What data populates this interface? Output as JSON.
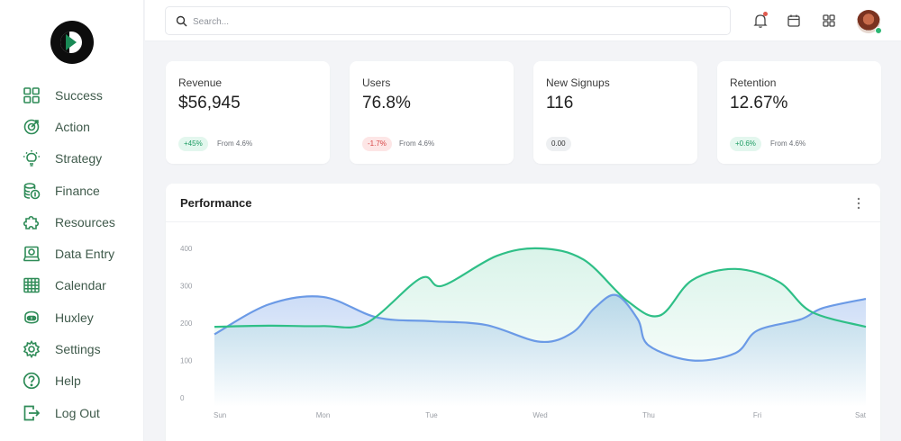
{
  "sidebar": {
    "items": [
      {
        "label": "Success",
        "icon": "grid-icon"
      },
      {
        "label": "Action",
        "icon": "target-icon"
      },
      {
        "label": "Strategy",
        "icon": "lightbulb-icon"
      },
      {
        "label": "Finance",
        "icon": "coins-icon"
      },
      {
        "label": "Resources",
        "icon": "puzzle-icon"
      },
      {
        "label": "Data Entry",
        "icon": "laptop-icon"
      },
      {
        "label": "Calendar",
        "icon": "calendar-grid-icon"
      },
      {
        "label": "Huxley",
        "icon": "robot-icon"
      },
      {
        "label": "Settings",
        "icon": "gear-icon"
      },
      {
        "label": "Help",
        "icon": "help-icon"
      },
      {
        "label": "Log Out",
        "icon": "logout-icon"
      }
    ],
    "icon_color": "#2e8b57"
  },
  "topbar": {
    "search_placeholder": "Search...",
    "search_value": "",
    "icons": [
      "bell-icon",
      "calendar-icon",
      "apps-grid-icon",
      "avatar"
    ]
  },
  "stats": [
    {
      "label": "Revenue",
      "value": "$56,945",
      "badge": "+45%",
      "trend": "up",
      "from": "From 4.6%"
    },
    {
      "label": "Users",
      "value": "76.8%",
      "badge": "-1.7%",
      "trend": "down",
      "from": "From 4.6%"
    },
    {
      "label": "New Signups",
      "value": "116",
      "badge": "0.00",
      "trend": "flat",
      "from": ""
    },
    {
      "label": "Retention",
      "value": "12.67%",
      "badge": "+0.6%",
      "trend": "up",
      "from": "From 4.6%"
    }
  ],
  "performance": {
    "title": "Performance"
  },
  "chart_data": {
    "type": "area",
    "title": "",
    "xlabel": "",
    "ylabel": "",
    "categories": [
      "Sun",
      "Mon",
      "Tue",
      "Wed",
      "Thu",
      "Fri",
      "Sat"
    ],
    "yticks": [
      0,
      100,
      200,
      300,
      400
    ],
    "ylim": [
      0,
      400
    ],
    "grid": false,
    "series": [
      {
        "color": "#6b9ae6",
        "points": [
          [
            0,
            170
          ],
          [
            0.5,
            250
          ],
          [
            1,
            270
          ],
          [
            1.5,
            215
          ],
          [
            2,
            205
          ],
          [
            2.5,
            195
          ],
          [
            3,
            150
          ],
          [
            3.3,
            175
          ],
          [
            3.5,
            240
          ],
          [
            3.7,
            275
          ],
          [
            3.9,
            210
          ],
          [
            4,
            140
          ],
          [
            4.4,
            100
          ],
          [
            4.8,
            120
          ],
          [
            5,
            180
          ],
          [
            5.4,
            210
          ],
          [
            5.6,
            240
          ],
          [
            6,
            265
          ]
        ]
      },
      {
        "color": "#2fbf87",
        "points": [
          [
            0,
            190
          ],
          [
            0.5,
            193
          ],
          [
            1,
            192
          ],
          [
            1.4,
            200
          ],
          [
            1.9,
            320
          ],
          [
            2.1,
            300
          ],
          [
            2.6,
            380
          ],
          [
            3,
            400
          ],
          [
            3.4,
            370
          ],
          [
            3.8,
            260
          ],
          [
            4.1,
            220
          ],
          [
            4.4,
            315
          ],
          [
            4.8,
            345
          ],
          [
            5.2,
            310
          ],
          [
            5.5,
            230
          ],
          [
            6,
            190
          ]
        ]
      }
    ]
  }
}
